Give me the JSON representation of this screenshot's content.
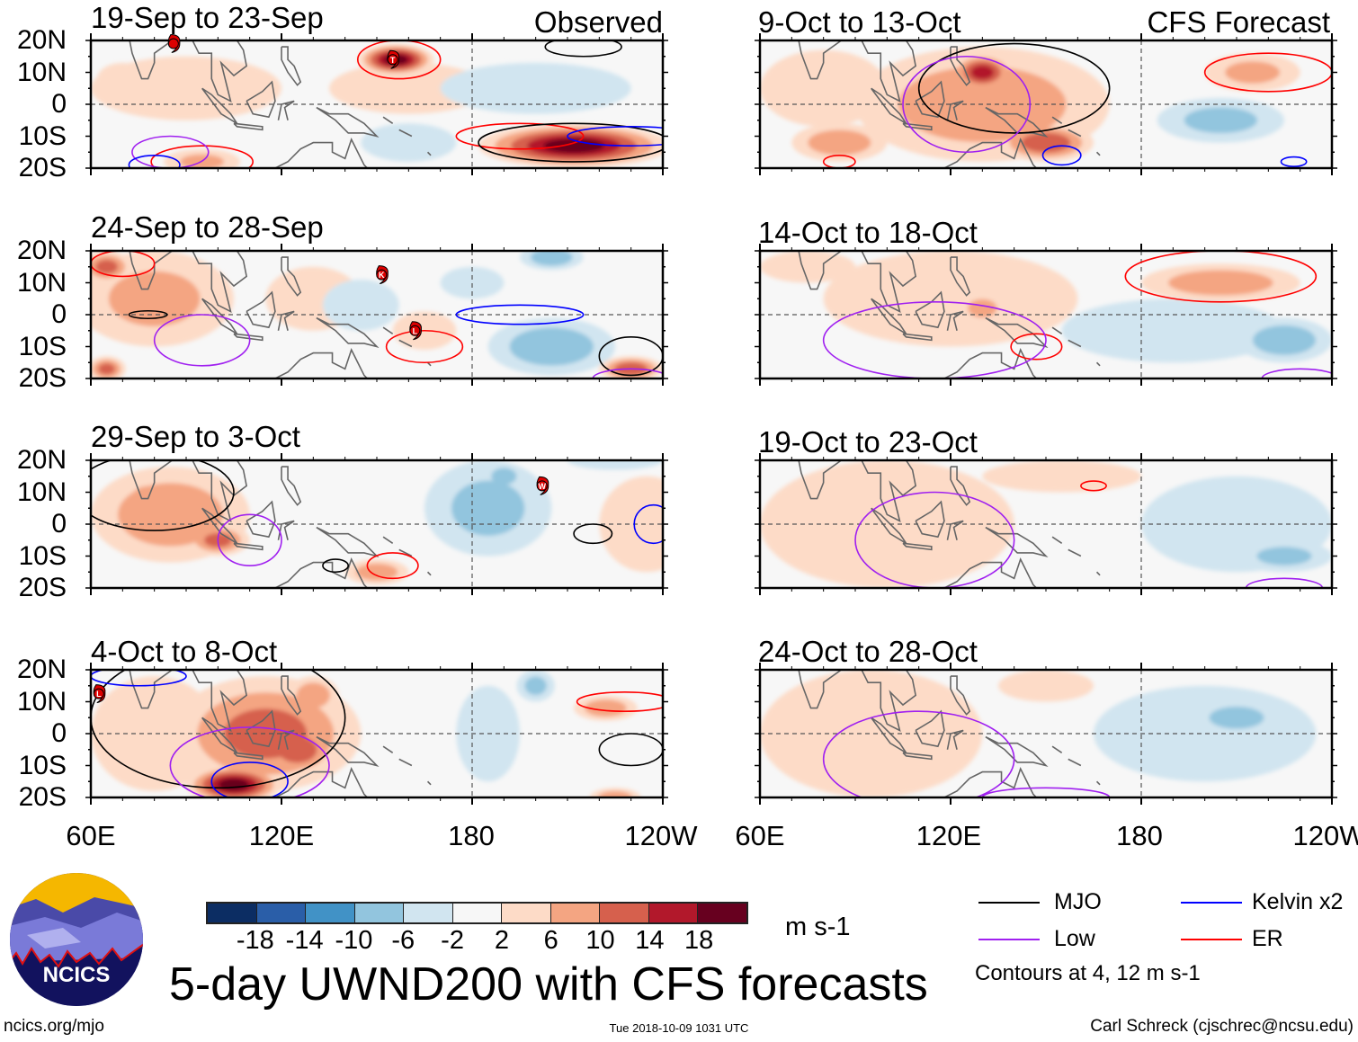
{
  "header": {
    "observed_label": "Observed",
    "forecast_label": "CFS Forecast"
  },
  "lat_labels": [
    "20N",
    "10N",
    "0",
    "10S",
    "20S"
  ],
  "lon_labels": [
    "60E",
    "120E",
    "180",
    "120W"
  ],
  "colorbar": {
    "labels": [
      "-18",
      "-14",
      "-10",
      "-6",
      "-2",
      "2",
      "6",
      "10",
      "14",
      "18"
    ],
    "colors": [
      "#0c2d63",
      "#2a5ea8",
      "#4192c6",
      "#92c5de",
      "#d1e5f0",
      "#f7f7f7",
      "#fddbc7",
      "#f4a582",
      "#d6604d",
      "#b2182b",
      "#67001f"
    ],
    "units": "m s-1"
  },
  "title": "5-day UWND200 with CFS forecasts",
  "legend": {
    "items": [
      {
        "label": "MJO",
        "color": "#000000"
      },
      {
        "label": "Kelvin x2",
        "color": "#0000ff"
      },
      {
        "label": "Low",
        "color": "#a020f0"
      },
      {
        "label": "ER",
        "color": "#ff0000"
      }
    ],
    "note": "Contours at 4, 12 m s-1"
  },
  "logo": {
    "text": "NCICS"
  },
  "footer": {
    "url": "ncics.org/mjo",
    "timestamp": "Tue 2018-10-09 1031 UTC",
    "credit": "Carl Schreck (cjschrec@ncsu.edu)"
  },
  "coastlines": [
    [
      [
        68,
        23
      ],
      [
        72,
        21
      ],
      [
        73,
        16
      ],
      [
        76,
        8
      ],
      [
        78,
        8
      ],
      [
        80,
        13
      ],
      [
        80,
        16
      ],
      [
        87,
        21
      ],
      [
        90,
        22
      ]
    ],
    [
      [
        92,
        20
      ],
      [
        94,
        16
      ],
      [
        98,
        16
      ],
      [
        98,
        8
      ],
      [
        100,
        3
      ],
      [
        104,
        1
      ],
      [
        103,
        5
      ],
      [
        101,
        13
      ],
      [
        105,
        9
      ],
      [
        109,
        12
      ],
      [
        108,
        17
      ],
      [
        106,
        20
      ],
      [
        110,
        21
      ],
      [
        117,
        23
      ],
      [
        121,
        25
      ]
    ],
    [
      [
        95,
        5
      ],
      [
        98,
        3
      ],
      [
        104,
        -3
      ],
      [
        106,
        -6
      ],
      [
        101,
        -3
      ],
      [
        95,
        5
      ]
    ],
    [
      [
        105,
        -6
      ],
      [
        114,
        -7
      ],
      [
        114,
        -8
      ],
      [
        106,
        -7
      ],
      [
        105,
        -6
      ]
    ],
    [
      [
        109,
        1
      ],
      [
        111,
        -3
      ],
      [
        116,
        -4
      ],
      [
        118,
        1
      ],
      [
        117,
        7
      ],
      [
        114,
        4
      ],
      [
        109,
        1
      ]
    ],
    [
      [
        119,
        -5
      ],
      [
        120,
        0
      ],
      [
        124,
        1
      ],
      [
        121,
        -1
      ],
      [
        122,
        -5
      ]
    ],
    [
      [
        120,
        18
      ],
      [
        122,
        18
      ],
      [
        122,
        14
      ],
      [
        124,
        12
      ],
      [
        126,
        7
      ],
      [
        125,
        6
      ],
      [
        122,
        10
      ],
      [
        120,
        14
      ],
      [
        120,
        18
      ]
    ],
    [
      [
        131,
        -1
      ],
      [
        135,
        -3
      ],
      [
        141,
        -3
      ],
      [
        146,
        -6
      ],
      [
        150,
        -10
      ],
      [
        146,
        -9
      ],
      [
        141,
        -9
      ],
      [
        137,
        -5
      ],
      [
        131,
        -1
      ]
    ],
    [
      [
        114,
        -22
      ],
      [
        122,
        -18
      ],
      [
        126,
        -14
      ],
      [
        130,
        -12
      ],
      [
        136,
        -12
      ],
      [
        136,
        -15
      ],
      [
        140,
        -17
      ],
      [
        142,
        -11
      ],
      [
        144,
        -15
      ],
      [
        146,
        -19
      ],
      [
        149,
        -22
      ]
    ],
    [
      [
        152,
        -4
      ],
      [
        155,
        -6
      ]
    ],
    [
      [
        157,
        -8
      ],
      [
        161,
        -10
      ]
    ],
    [
      [
        166,
        -15
      ],
      [
        167,
        -16
      ]
    ]
  ],
  "panels": [
    {
      "id": "obs-1",
      "title": "19-Sep to 23-Sep",
      "column": "observed",
      "anomalies": [
        [
          90,
          5,
          30,
          10,
          4
        ],
        [
          160,
          5,
          25,
          8,
          4
        ],
        [
          200,
          5,
          30,
          8,
          -4
        ],
        [
          160,
          -12,
          15,
          6,
          -6
        ],
        [
          95,
          -18,
          12,
          4,
          8
        ],
        [
          156,
          14,
          12,
          5,
          20
        ],
        [
          212,
          -13,
          30,
          7,
          20
        ],
        [
          70,
          8,
          8,
          5,
          6
        ]
      ],
      "contours": [
        [
          "ER",
          157,
          14,
          13,
          6
        ],
        [
          "ER",
          195,
          -10,
          20,
          4
        ],
        [
          "ER",
          95,
          -18,
          16,
          5
        ],
        [
          "MJO",
          212,
          -12,
          30,
          6
        ],
        [
          "MJO",
          215,
          18,
          12,
          3
        ],
        [
          "Low",
          85,
          -15,
          12,
          5
        ],
        [
          "Kelvin",
          80,
          -19,
          8,
          3
        ],
        [
          "Kelvin",
          230,
          -10,
          20,
          3
        ]
      ],
      "storms": [
        [
          86,
          19,
          ""
        ],
        [
          155,
          14,
          "T"
        ]
      ]
    },
    {
      "id": "obs-2",
      "title": "24-Sep to 28-Sep",
      "column": "observed",
      "anomalies": [
        [
          80,
          5,
          25,
          15,
          8
        ],
        [
          130,
          5,
          15,
          10,
          4
        ],
        [
          165,
          -5,
          10,
          6,
          4
        ],
        [
          145,
          3,
          12,
          8,
          -6
        ],
        [
          180,
          10,
          10,
          5,
          -4
        ],
        [
          205,
          -10,
          20,
          9,
          -10
        ],
        [
          205,
          18,
          10,
          4,
          -10
        ],
        [
          65,
          15,
          8,
          5,
          12
        ],
        [
          65,
          -17,
          6,
          4,
          12
        ],
        [
          230,
          -17,
          10,
          4,
          14
        ]
      ],
      "contours": [
        [
          "MJO",
          78,
          0,
          6,
          1.2
        ],
        [
          "ER",
          70,
          16,
          10,
          4
        ],
        [
          "ER",
          165,
          -10,
          12,
          5
        ],
        [
          "Kelvin",
          195,
          0,
          20,
          3
        ],
        [
          "MJO",
          230,
          -13,
          10,
          6
        ],
        [
          "Low",
          230,
          -20,
          12,
          3
        ],
        [
          "Low",
          95,
          -8,
          15,
          8
        ]
      ],
      "storms": [
        [
          151.5,
          12.5,
          "K"
        ],
        [
          162,
          -5,
          "L"
        ]
      ]
    },
    {
      "id": "obs-3",
      "title": "29-Sep to 3-Oct",
      "column": "observed",
      "anomalies": [
        [
          85,
          3,
          25,
          15,
          10
        ],
        [
          235,
          0,
          15,
          15,
          4
        ],
        [
          185,
          5,
          20,
          15,
          -8
        ],
        [
          225,
          20,
          15,
          3,
          -4
        ],
        [
          190,
          15,
          6,
          4,
          -10
        ],
        [
          100,
          -5,
          10,
          5,
          12
        ],
        [
          78,
          8,
          8,
          6,
          10
        ],
        [
          150,
          -15,
          10,
          4,
          10
        ]
      ],
      "contours": [
        [
          "MJO",
          80,
          10,
          25,
          12
        ],
        [
          "Low",
          110,
          -5,
          10,
          8
        ],
        [
          "ER",
          155,
          -13,
          8,
          4
        ],
        [
          "MJO",
          218,
          -3,
          6,
          3
        ],
        [
          "Kelvin",
          237,
          0,
          6,
          6
        ],
        [
          "MJO",
          137,
          -13,
          4,
          2
        ]
      ],
      "storms": [
        [
          202,
          12,
          "W"
        ]
      ]
    },
    {
      "id": "obs-4",
      "title": "4-Oct to 8-Oct",
      "column": "observed",
      "anomalies": [
        [
          80,
          0,
          20,
          18,
          4
        ],
        [
          115,
          0,
          30,
          18,
          12
        ],
        [
          185,
          0,
          10,
          15,
          -4
        ],
        [
          200,
          15,
          6,
          5,
          -8
        ],
        [
          125,
          -5,
          12,
          8,
          14
        ],
        [
          130,
          12,
          8,
          6,
          10
        ],
        [
          105,
          -16,
          15,
          6,
          20
        ],
        [
          222,
          8,
          10,
          4,
          10
        ],
        [
          225,
          -20,
          8,
          3,
          10
        ]
      ],
      "contours": [
        [
          "MJO",
          100,
          5,
          40,
          22
        ],
        [
          "Low",
          110,
          -10,
          25,
          12
        ],
        [
          "Kelvin",
          110,
          -15,
          12,
          6
        ],
        [
          "ER",
          228,
          10,
          15,
          3
        ],
        [
          "MJO",
          230,
          -5,
          10,
          5
        ],
        [
          "Kelvin",
          75,
          18,
          15,
          3
        ]
      ],
      "storms": [
        [
          62.5,
          12.5,
          "L"
        ]
      ]
    },
    {
      "id": "fcst-1",
      "title": "9-Oct to 13-Oct",
      "column": "forecast",
      "anomalies": [
        [
          80,
          5,
          20,
          12,
          4
        ],
        [
          130,
          0,
          40,
          18,
          10
        ],
        [
          215,
          10,
          15,
          6,
          8
        ],
        [
          205,
          -5,
          20,
          7,
          -8
        ],
        [
          130,
          10,
          10,
          6,
          16
        ],
        [
          150,
          -12,
          15,
          6,
          14
        ],
        [
          85,
          -12,
          15,
          6,
          10
        ]
      ],
      "contours": [
        [
          "MJO",
          140,
          5,
          30,
          14
        ],
        [
          "Low",
          125,
          0,
          20,
          15
        ],
        [
          "ER",
          220,
          10,
          20,
          6
        ],
        [
          "Kelvin",
          155,
          -16,
          6,
          3
        ],
        [
          "Kelvin",
          228,
          -18,
          4,
          1.5
        ],
        [
          "ER",
          85,
          -18,
          5,
          2
        ]
      ],
      "storms": []
    },
    {
      "id": "fcst-2",
      "title": "14-Oct to 18-Oct",
      "column": "forecast",
      "anomalies": [
        [
          120,
          5,
          40,
          15,
          4
        ],
        [
          75,
          15,
          15,
          5,
          4
        ],
        [
          190,
          -5,
          35,
          10,
          -4
        ],
        [
          205,
          10,
          25,
          6,
          10
        ],
        [
          130,
          2,
          8,
          5,
          8
        ],
        [
          225,
          -8,
          15,
          7,
          -10
        ]
      ],
      "contours": [
        [
          "ER",
          205,
          12,
          30,
          8
        ],
        [
          "ER",
          147,
          -10,
          8,
          4
        ],
        [
          "Low",
          115,
          -8,
          35,
          12
        ],
        [
          "Low",
          230,
          -20,
          12,
          3
        ]
      ],
      "storms": []
    },
    {
      "id": "fcst-3",
      "title": "19-Oct to 23-Oct",
      "column": "forecast",
      "anomalies": [
        [
          100,
          0,
          40,
          20,
          4
        ],
        [
          155,
          15,
          25,
          5,
          4
        ],
        [
          210,
          0,
          30,
          15,
          -4
        ],
        [
          225,
          -10,
          15,
          5,
          -8
        ]
      ],
      "contours": [
        [
          "Low",
          115,
          -5,
          25,
          15
        ],
        [
          "ER",
          165,
          12,
          4,
          1.5
        ],
        [
          "Low",
          225,
          -20,
          12,
          3
        ]
      ],
      "storms": []
    },
    {
      "id": "fcst-4",
      "title": "24-Oct to 28-Oct",
      "column": "forecast",
      "anomalies": [
        [
          95,
          0,
          35,
          20,
          4
        ],
        [
          200,
          0,
          35,
          15,
          -4
        ],
        [
          100,
          -10,
          12,
          6,
          6
        ],
        [
          150,
          15,
          15,
          5,
          6
        ],
        [
          210,
          5,
          15,
          6,
          -8
        ]
      ],
      "contours": [
        [
          "Low",
          110,
          -8,
          30,
          15
        ],
        [
          "Low",
          150,
          -20,
          20,
          3
        ]
      ],
      "storms": []
    }
  ]
}
